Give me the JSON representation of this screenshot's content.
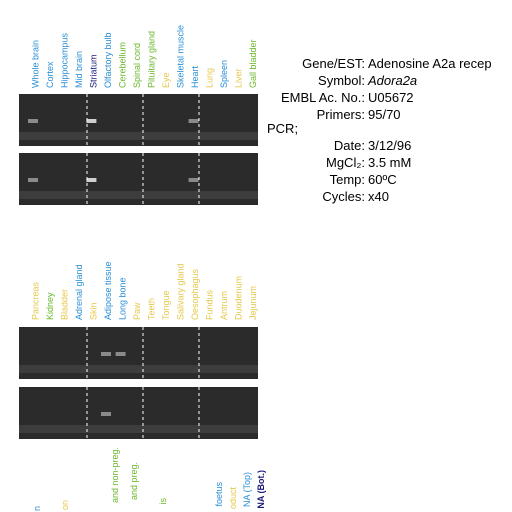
{
  "lane_groups": [
    {
      "labels": [
        {
          "text": "Whole brain",
          "color": "#2a8fd6"
        },
        {
          "text": "Cortex",
          "color": "#2a8fd6"
        },
        {
          "text": "Hippocampus",
          "color": "#2a8fd6"
        },
        {
          "text": "Mid brain",
          "color": "#2a8fd6"
        },
        {
          "text": "Striatum",
          "color": "#1a1a7a"
        },
        {
          "text": "Olfactory bulb",
          "color": "#2a8fd6"
        },
        {
          "text": "Cerebellum",
          "color": "#6ab82a"
        },
        {
          "text": "Spinal cord",
          "color": "#6ab82a"
        },
        {
          "text": "Pituitary gland",
          "color": "#6ab82a"
        },
        {
          "text": "Eye",
          "color": "#e6c84a"
        },
        {
          "text": "Skeletal muscle",
          "color": "#2a8fd6"
        },
        {
          "text": "Heart",
          "color": "#2a8fd6"
        },
        {
          "text": "Lung",
          "color": "#e6c84a"
        },
        {
          "text": "Spleen",
          "color": "#2a8fd6"
        },
        {
          "text": "Liver",
          "color": "#e6c84a"
        },
        {
          "text": "Gall bladder",
          "color": "#6ab82a"
        }
      ]
    },
    {
      "labels": [
        {
          "text": "Pancreas",
          "color": "#e6c84a"
        },
        {
          "text": "Kidney",
          "color": "#6ab82a"
        },
        {
          "text": "Bladder",
          "color": "#e6c84a"
        },
        {
          "text": "Adrenal gland",
          "color": "#2a8fd6"
        },
        {
          "text": "Skin",
          "color": "#e6c84a"
        },
        {
          "text": "Adipose tissue",
          "color": "#2a8fd6"
        },
        {
          "text": "Long bone",
          "color": "#2a8fd6"
        },
        {
          "text": "Paw",
          "color": "#e6c84a"
        },
        {
          "text": "Teeth",
          "color": "#e6c84a"
        },
        {
          "text": "Tongue",
          "color": "#e6c84a"
        },
        {
          "text": "Salivary gland",
          "color": "#e6c84a"
        },
        {
          "text": "Oesophagus",
          "color": "#e6c84a"
        },
        {
          "text": "Fundus",
          "color": "#e6c84a"
        },
        {
          "text": "Antrum",
          "color": "#e6c84a"
        },
        {
          "text": "Duodenum",
          "color": "#e6c84a"
        },
        {
          "text": "Jejunum",
          "color": "#e6c84a"
        }
      ]
    }
  ],
  "cut_labels": [
    {
      "text": "n",
      "color": "#2a8fd6"
    },
    {
      "text": "on",
      "color": "#e6c84a"
    },
    {
      "text": "and non-preg.",
      "color": "#6ab82a"
    },
    {
      "text": "and preg.",
      "color": "#6ab82a"
    },
    {
      "text": "is",
      "color": "#6ab82a"
    },
    {
      "text": "foetus",
      "color": "#2a8fd6"
    },
    {
      "text": "oduct",
      "color": "#e6c84a"
    },
    {
      "text": "NA (Top)",
      "color": "#2a8fd6"
    },
    {
      "text": "NA (Bot.)",
      "color": "#1a1a7a"
    }
  ],
  "info": {
    "rows_top": [
      [
        "Gene/EST:",
        "Adenosine A2a recep"
      ],
      [
        "Symbol:",
        "Adora2a"
      ],
      [
        "EMBL Ac. No.:",
        "U05672"
      ],
      [
        "Primers:",
        "95/70"
      ]
    ],
    "pcr": "PCR;",
    "rows_bottom": [
      [
        "Date:",
        "3/12/96"
      ],
      [
        "MgCl₂:",
        "3.5 mM"
      ],
      [
        "Temp:",
        "60ºC"
      ],
      [
        "Cycles:",
        "x40"
      ]
    ]
  }
}
